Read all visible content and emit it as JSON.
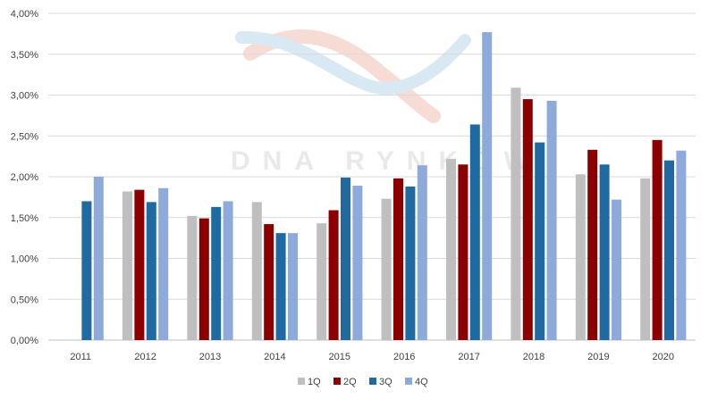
{
  "chart_data": {
    "type": "bar",
    "title": "",
    "xlabel": "",
    "ylabel": "",
    "categories": [
      "2011",
      "2012",
      "2013",
      "2014",
      "2015",
      "2016",
      "2017",
      "2018",
      "2019",
      "2020"
    ],
    "series": [
      {
        "name": "1Q",
        "color": "#bfbfbf",
        "values": [
          null,
          1.82,
          1.52,
          1.69,
          1.43,
          1.73,
          2.22,
          3.09,
          2.03,
          1.98
        ]
      },
      {
        "name": "2Q",
        "color": "#8b0000",
        "values": [
          null,
          1.84,
          1.49,
          1.42,
          1.59,
          1.98,
          2.15,
          2.95,
          2.33,
          2.45
        ]
      },
      {
        "name": "3Q",
        "color": "#1f6aa0",
        "values": [
          1.7,
          1.69,
          1.63,
          1.31,
          1.99,
          1.88,
          2.64,
          2.42,
          2.15,
          2.2
        ]
      },
      {
        "name": "4Q",
        "color": "#8eaadb",
        "values": [
          2.0,
          1.86,
          1.7,
          1.31,
          1.89,
          2.14,
          3.77,
          2.93,
          1.72,
          2.32
        ]
      }
    ],
    "ylim": [
      0,
      4.0
    ],
    "yticks": [
      0,
      0.5,
      1.0,
      1.5,
      2.0,
      2.5,
      3.0,
      3.5,
      4.0
    ],
    "ytick_labels": [
      "0,00%",
      "0,50%",
      "1,00%",
      "1,50%",
      "2,00%",
      "2,50%",
      "3,00%",
      "3,50%",
      "4,00%"
    ],
    "grid": true,
    "legend_position": "bottom"
  },
  "watermark": {
    "text": "DNA RYNKÓW"
  }
}
